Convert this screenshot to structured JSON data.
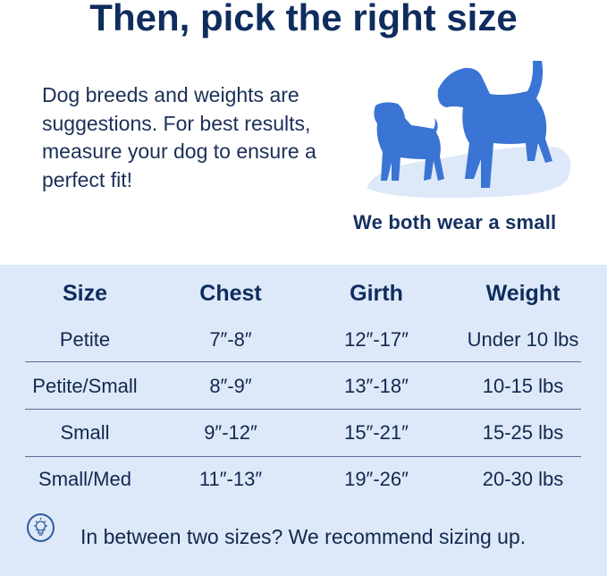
{
  "title": "Then, pick the right size",
  "intro": "Dog breeds and weights are suggestions. For best results, measure your dog to ensure a perfect fit!",
  "caption": "We both wear a small",
  "colors": {
    "navy": "#0f2c5e",
    "dog": "#3a74d4",
    "panel": "#dde9f8"
  },
  "table": {
    "headers": [
      "Size",
      "Chest",
      "Girth",
      "Weight"
    ],
    "rows": [
      [
        "Petite",
        "7″-8″",
        "12″-17″",
        "Under 10 lbs"
      ],
      [
        "Petite/Small",
        "8″-9″",
        "13″-18″",
        "10-15 lbs"
      ],
      [
        "Small",
        "9″-12″",
        "15″-21″",
        "15-25 lbs"
      ],
      [
        "Small/Med",
        "11″-13″",
        "19″-26″",
        "20-30 lbs"
      ]
    ]
  },
  "tip": {
    "icon": "lightbulb-icon",
    "text": "In between two sizes? We recommend sizing up."
  }
}
